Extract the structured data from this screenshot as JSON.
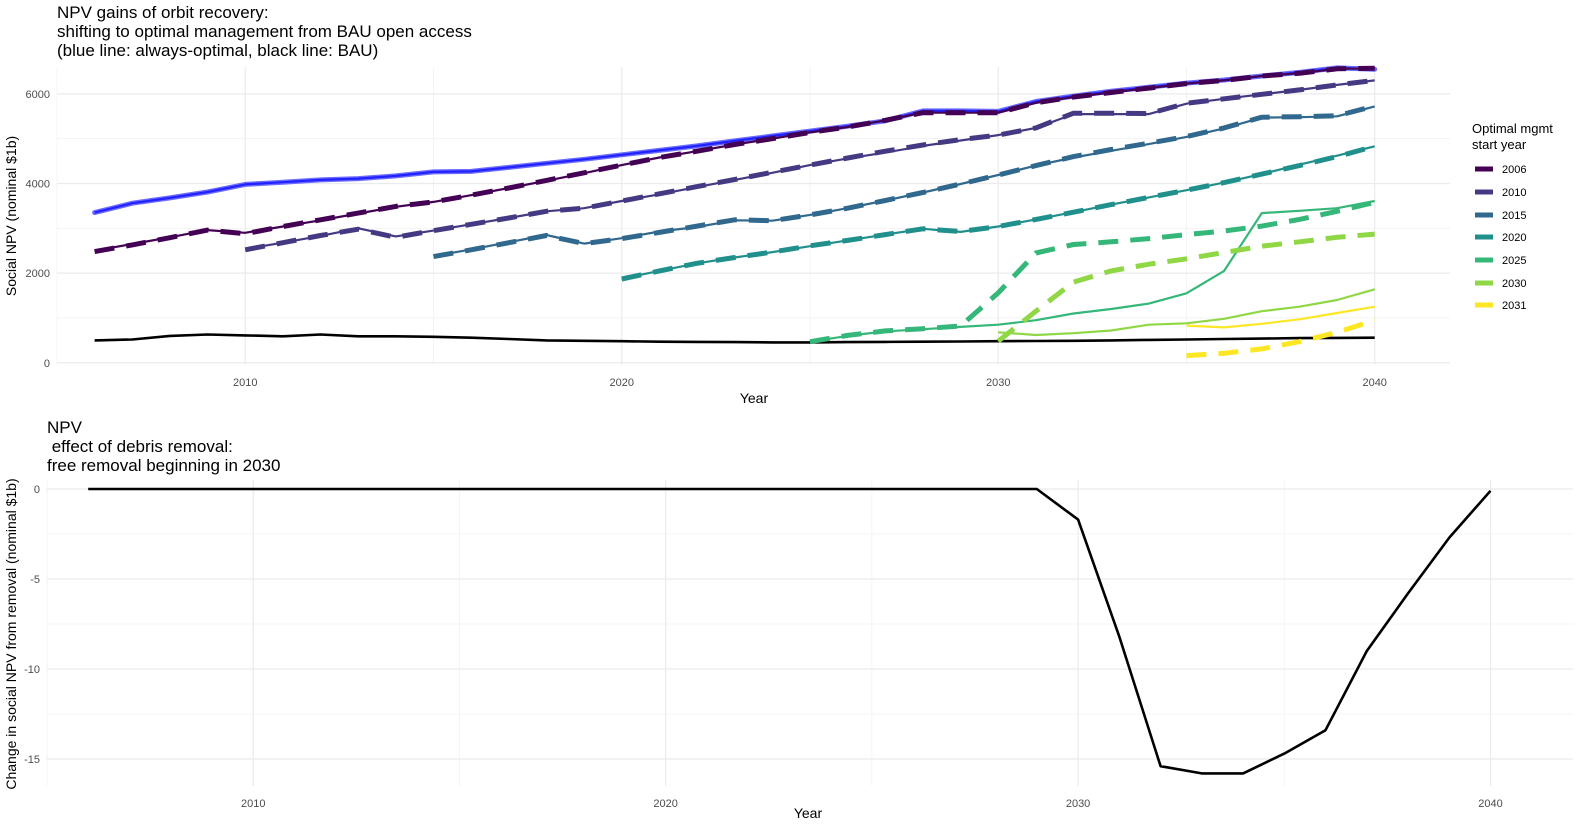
{
  "chart_data": [
    {
      "type": "line",
      "title_lines": [
        "NPV gains of orbit recovery:",
        "shifting to optimal management from BAU open access",
        "(blue line: always-optimal, black line: BAU)"
      ],
      "xlabel": "Year",
      "ylabel": "Social NPV (nominal $1b)",
      "xlim": [
        2005,
        2042
      ],
      "ylim": [
        -50,
        6600
      ],
      "x_ticks": [
        2010,
        2020,
        2030,
        2040
      ],
      "x_tick_labels": [
        "2010",
        "2020",
        "2030",
        "2040"
      ],
      "y_ticks": [
        0,
        2000,
        4000,
        6000
      ],
      "y_tick_labels": [
        "0",
        "2000",
        "4000",
        "6000"
      ],
      "grid": true,
      "legend": {
        "title_lines": [
          "Optimal mgmt",
          "start year"
        ],
        "position": "right",
        "entries": [
          {
            "label": "2006",
            "color": "#440154"
          },
          {
            "label": "2010",
            "color": "#443a83"
          },
          {
            "label": "2015",
            "color": "#31688e"
          },
          {
            "label": "2020",
            "color": "#21908d"
          },
          {
            "label": "2025",
            "color": "#35b779"
          },
          {
            "label": "2030",
            "color": "#8fd744"
          },
          {
            "label": "2031",
            "color": "#fde725"
          }
        ]
      },
      "reference_lines": [
        {
          "kind": "always-optimal",
          "color": "#2222ff",
          "x": [
            2006,
            2007,
            2008,
            2009,
            2010,
            2011,
            2012,
            2013,
            2014,
            2015,
            2016,
            2017,
            2018,
            2019,
            2020,
            2021,
            2022,
            2023,
            2024,
            2025,
            2026,
            2027,
            2028,
            2029,
            2030,
            2031,
            2032,
            2033,
            2034,
            2035,
            2036,
            2037,
            2038,
            2039,
            2040
          ],
          "y": [
            3350,
            3560,
            3680,
            3810,
            3980,
            4030,
            4080,
            4110,
            4170,
            4260,
            4270,
            4360,
            4450,
            4540,
            4640,
            4740,
            4840,
            4950,
            5060,
            5170,
            5280,
            5400,
            5620,
            5620,
            5610,
            5830,
            5950,
            6060,
            6150,
            6240,
            6310,
            6400,
            6480,
            6580,
            6550
          ]
        },
        {
          "kind": "BAU",
          "color": "#000000",
          "x": [
            2006,
            2007,
            2008,
            2009,
            2010,
            2011,
            2012,
            2013,
            2014,
            2015,
            2016,
            2017,
            2018,
            2019,
            2020,
            2021,
            2022,
            2023,
            2024,
            2025,
            2026,
            2027,
            2028,
            2029,
            2030,
            2031,
            2032,
            2033,
            2034,
            2035,
            2036,
            2037,
            2038,
            2039,
            2040
          ],
          "y": [
            500,
            520,
            600,
            630,
            610,
            590,
            630,
            590,
            590,
            580,
            560,
            530,
            500,
            490,
            480,
            470,
            465,
            460,
            455,
            455,
            460,
            465,
            470,
            475,
            480,
            485,
            490,
            500,
            510,
            520,
            530,
            540,
            550,
            555,
            560
          ]
        }
      ],
      "series": [
        {
          "name": "2006",
          "color": "#440154",
          "x": [
            2006,
            2007,
            2008,
            2009,
            2010,
            2011,
            2012,
            2013,
            2014,
            2015,
            2016,
            2017,
            2018,
            2019,
            2020,
            2021,
            2022,
            2023,
            2024,
            2025,
            2026,
            2027,
            2028,
            2029,
            2030,
            2031,
            2032,
            2033,
            2034,
            2035,
            2036,
            2037,
            2038,
            2039,
            2040
          ],
          "optimal_y": [
            2500,
            2650,
            2800,
            2960,
            2900,
            3040,
            3180,
            3330,
            3480,
            3590,
            3740,
            3900,
            4060,
            4230,
            4410,
            4580,
            4720,
            4870,
            5000,
            5140,
            5260,
            5410,
            5580,
            5580,
            5580,
            5800,
            5930,
            6030,
            6130,
            6230,
            6300,
            6400,
            6460,
            6560,
            6570
          ],
          "bau_y": [
            2480,
            2630,
            2790,
            2960,
            2880,
            3040,
            3190,
            3340,
            3490,
            3590,
            3740,
            3900,
            4070,
            4240,
            4410,
            4580,
            4720,
            4870,
            5000,
            5140,
            5260,
            5410,
            5580,
            5580,
            5580,
            5800,
            5930,
            6030,
            6130,
            6230,
            6300,
            6400,
            6460,
            6560,
            6570
          ]
        },
        {
          "name": "2010",
          "color": "#443a83",
          "x": [
            2010,
            2011,
            2012,
            2013,
            2014,
            2015,
            2016,
            2017,
            2018,
            2019,
            2020,
            2021,
            2022,
            2023,
            2024,
            2025,
            2026,
            2027,
            2028,
            2029,
            2030,
            2031,
            2032,
            2033,
            2034,
            2035,
            2036,
            2037,
            2038,
            2039,
            2040
          ],
          "optimal_y": [
            2540,
            2680,
            2830,
            3000,
            2820,
            2950,
            3090,
            3230,
            3380,
            3450,
            3610,
            3760,
            3920,
            4080,
            4240,
            4410,
            4560,
            4690,
            4840,
            4960,
            5080,
            5240,
            5550,
            5550,
            5550,
            5780,
            5890,
            5990,
            6090,
            6200,
            6300
          ],
          "bau_y": [
            2520,
            2680,
            2840,
            2980,
            2800,
            2950,
            3090,
            3230,
            3380,
            3450,
            3610,
            3770,
            3930,
            4090,
            4250,
            4410,
            4570,
            4720,
            4860,
            4980,
            5080,
            5240,
            5570,
            5570,
            5560,
            5790,
            5890,
            5990,
            6090,
            6200,
            6300
          ]
        },
        {
          "name": "2015",
          "color": "#31688e",
          "x": [
            2015,
            2016,
            2017,
            2018,
            2019,
            2020,
            2021,
            2022,
            2023,
            2024,
            2025,
            2026,
            2027,
            2028,
            2029,
            2030,
            2031,
            2032,
            2033,
            2034,
            2035,
            2036,
            2037,
            2038,
            2039,
            2040
          ],
          "optimal_y": [
            2380,
            2530,
            2690,
            2850,
            2660,
            2780,
            2930,
            3030,
            3180,
            3170,
            3300,
            3450,
            3620,
            3800,
            3990,
            4190,
            4400,
            4580,
            4730,
            4880,
            5040,
            5230,
            5470,
            5480,
            5500,
            5720
          ],
          "bau_y": [
            2370,
            2520,
            2680,
            2840,
            2660,
            2770,
            2910,
            3050,
            3190,
            3170,
            3300,
            3450,
            3620,
            3800,
            3990,
            4190,
            4400,
            4600,
            4760,
            4900,
            5050,
            5240,
            5480,
            5490,
            5510,
            5730
          ]
        },
        {
          "name": "2020",
          "color": "#21908d",
          "x": [
            2020,
            2021,
            2022,
            2023,
            2024,
            2025,
            2026,
            2027,
            2028,
            2029,
            2030,
            2031,
            2032,
            2033,
            2034,
            2035,
            2036,
            2037,
            2038,
            2039,
            2040
          ],
          "optimal_y": [
            1880,
            2050,
            2220,
            2350,
            2470,
            2600,
            2730,
            2860,
            2990,
            2920,
            3040,
            3200,
            3360,
            3530,
            3690,
            3850,
            4020,
            4210,
            4420,
            4620,
            4830
          ],
          "bau_y": [
            1870,
            2050,
            2220,
            2350,
            2470,
            2610,
            2730,
            2860,
            2990,
            2930,
            3040,
            3200,
            3360,
            3530,
            3690,
            3850,
            4020,
            4210,
            4400,
            4600,
            4830
          ]
        },
        {
          "name": "2025",
          "color": "#35b779",
          "x": [
            2025,
            2026,
            2027,
            2028,
            2029,
            2030,
            2031,
            2032,
            2033,
            2034,
            2035,
            2036,
            2037,
            2038,
            2039,
            2040
          ],
          "optimal_y": [
            470,
            600,
            700,
            750,
            800,
            850,
            950,
            1100,
            1200,
            1320,
            1550,
            2050,
            3340,
            3390,
            3450,
            3610
          ],
          "bau_y": [
            470,
            610,
            710,
            760,
            820,
            1560,
            2450,
            2640,
            2700,
            2770,
            2860,
            2940,
            3050,
            3200,
            3380,
            3580
          ]
        },
        {
          "name": "2030",
          "color": "#8fd744",
          "x": [
            2030,
            2031,
            2032,
            2033,
            2034,
            2035,
            2036,
            2037,
            2038,
            2039,
            2040
          ],
          "optimal_y": [
            680,
            620,
            660,
            720,
            850,
            880,
            980,
            1150,
            1250,
            1400,
            1640
          ],
          "bau_y": [
            480,
            1150,
            1800,
            2050,
            2200,
            2320,
            2460,
            2600,
            2700,
            2800,
            2870
          ]
        },
        {
          "name": "2031",
          "color": "#fde725",
          "x": [
            2035,
            2036,
            2037,
            2038,
            2039,
            2040
          ],
          "optimal_y": [
            830,
            790,
            870,
            970,
            1110,
            1250
          ],
          "bau_y": [
            160,
            210,
            310,
            470,
            680,
            950
          ]
        }
      ]
    },
    {
      "type": "line",
      "title_lines": [
        "NPV",
        " effect of debris removal:",
        "free removal beginning in 2030"
      ],
      "xlabel": "Year",
      "ylabel": "Change in social NPV from removal (nominal $1b)",
      "xlim": [
        2005,
        2042
      ],
      "ylim": [
        -16.5,
        0.5
      ],
      "x_ticks": [
        2010,
        2020,
        2030,
        2040
      ],
      "x_tick_labels": [
        "2010",
        "2020",
        "2030",
        "2040"
      ],
      "y_ticks": [
        0,
        -5,
        -10,
        -15
      ],
      "y_tick_labels": [
        "0",
        "-5",
        "-10",
        "-15"
      ],
      "grid": true,
      "series": [
        {
          "color": "#000000",
          "x": [
            2006,
            2007,
            2008,
            2009,
            2010,
            2011,
            2012,
            2013,
            2014,
            2015,
            2016,
            2017,
            2018,
            2019,
            2020,
            2021,
            2022,
            2023,
            2024,
            2025,
            2026,
            2027,
            2028,
            2029,
            2030,
            2031,
            2032,
            2033,
            2034,
            2035,
            2036,
            2037,
            2038,
            2039,
            2040
          ],
          "y": [
            0,
            0,
            0,
            0,
            0,
            0,
            0,
            0,
            0,
            0,
            0,
            0,
            0,
            0,
            0,
            0,
            0,
            0,
            0,
            0,
            0,
            0,
            0,
            0,
            -1.7,
            -8.2,
            -15.4,
            -15.8,
            -15.8,
            -14.7,
            -13.4,
            -9.0,
            -5.8,
            -2.7,
            -0.1
          ]
        }
      ]
    }
  ]
}
